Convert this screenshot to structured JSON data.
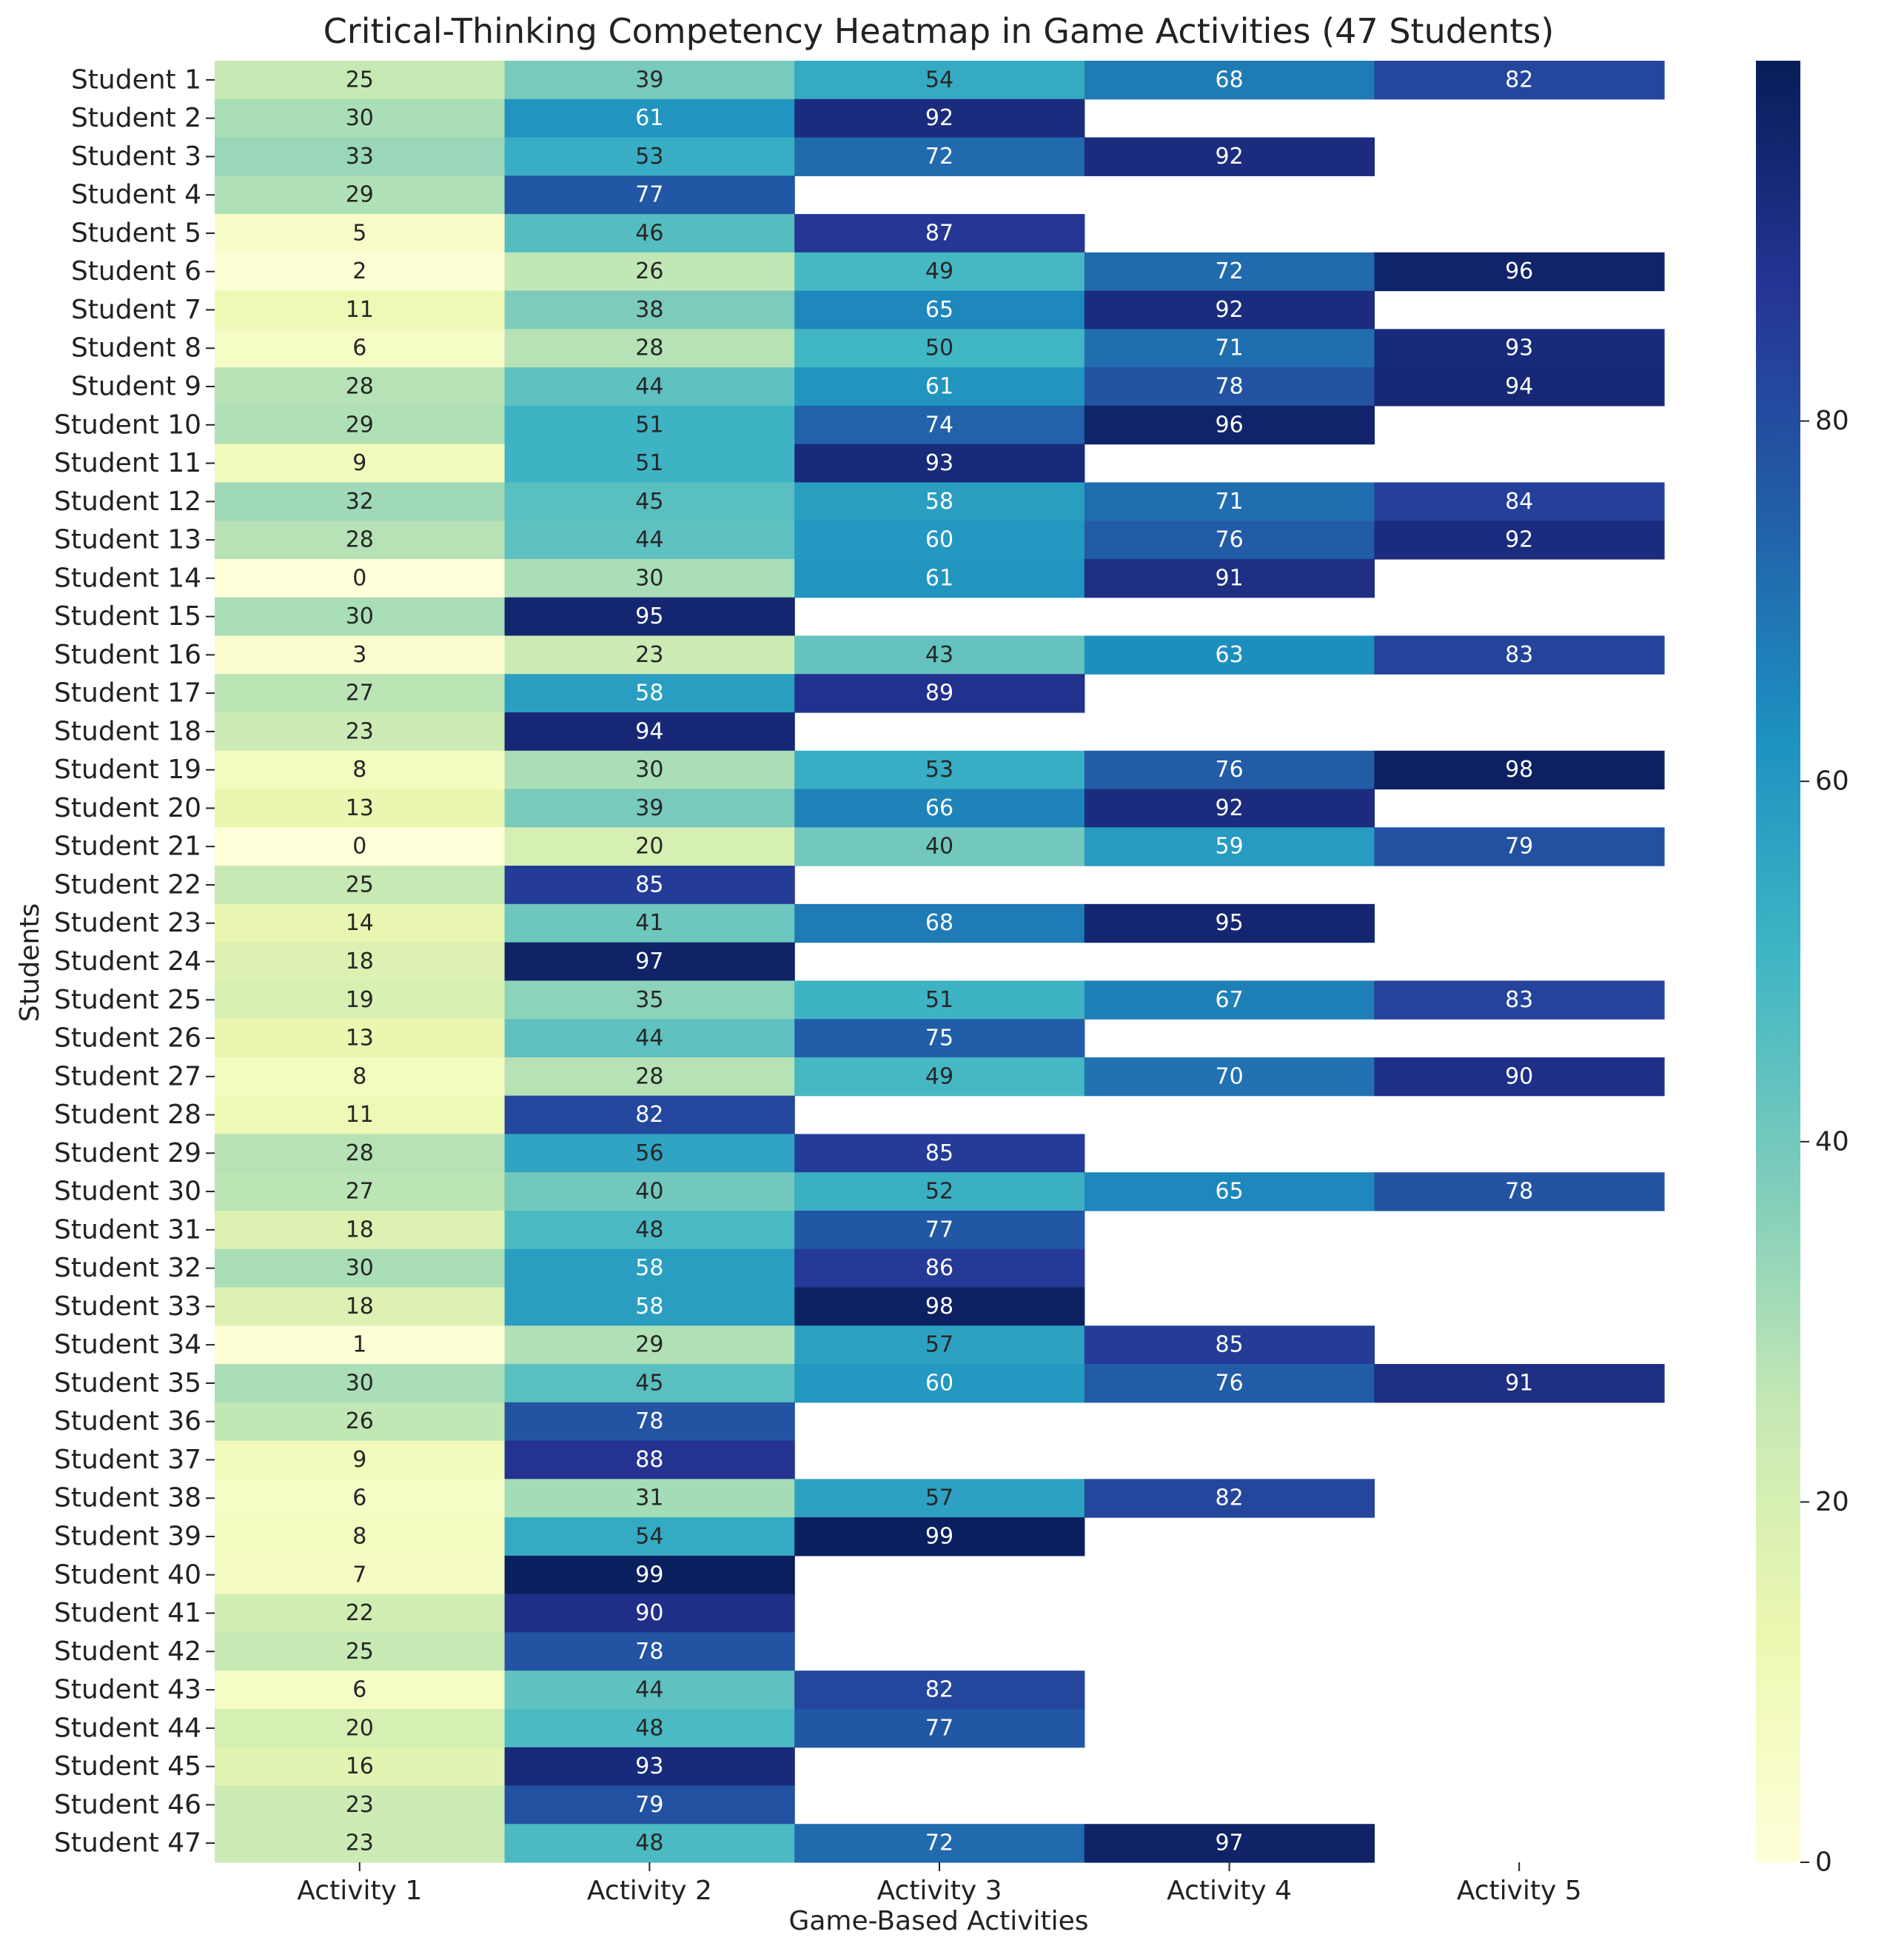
{
  "chart_data": {
    "type": "heatmap",
    "title": "Critical-Thinking Competency Heatmap in Game Activities (47 Students)",
    "xlabel": "Game-Based Activities",
    "ylabel": "Students",
    "colormap": "YlGnBu",
    "vmin": 0,
    "vmax": 100,
    "colorbar_ticks": [
      0,
      20,
      40,
      60,
      80
    ],
    "columns": [
      "Activity 1",
      "Activity 2",
      "Activity 3",
      "Activity 4",
      "Activity 5"
    ],
    "rows": [
      {
        "label": "Student 1",
        "values": [
          25,
          39,
          54,
          68,
          82
        ]
      },
      {
        "label": "Student 2",
        "values": [
          30,
          61,
          92,
          null,
          null
        ]
      },
      {
        "label": "Student 3",
        "values": [
          33,
          53,
          72,
          92,
          null
        ]
      },
      {
        "label": "Student 4",
        "values": [
          29,
          77,
          null,
          null,
          null
        ]
      },
      {
        "label": "Student 5",
        "values": [
          5,
          46,
          87,
          null,
          null
        ]
      },
      {
        "label": "Student 6",
        "values": [
          2,
          26,
          49,
          72,
          96
        ]
      },
      {
        "label": "Student 7",
        "values": [
          11,
          38,
          65,
          92,
          null
        ]
      },
      {
        "label": "Student 8",
        "values": [
          6,
          28,
          50,
          71,
          93
        ]
      },
      {
        "label": "Student 9",
        "values": [
          28,
          44,
          61,
          78,
          94
        ]
      },
      {
        "label": "Student 10",
        "values": [
          29,
          51,
          74,
          96,
          null
        ]
      },
      {
        "label": "Student 11",
        "values": [
          9,
          51,
          93,
          null,
          null
        ]
      },
      {
        "label": "Student 12",
        "values": [
          32,
          45,
          58,
          71,
          84
        ]
      },
      {
        "label": "Student 13",
        "values": [
          28,
          44,
          60,
          76,
          92
        ]
      },
      {
        "label": "Student 14",
        "values": [
          0,
          30,
          61,
          91,
          null
        ]
      },
      {
        "label": "Student 15",
        "values": [
          30,
          95,
          null,
          null,
          null
        ]
      },
      {
        "label": "Student 16",
        "values": [
          3,
          23,
          43,
          63,
          83
        ]
      },
      {
        "label": "Student 17",
        "values": [
          27,
          58,
          89,
          null,
          null
        ]
      },
      {
        "label": "Student 18",
        "values": [
          23,
          94,
          null,
          null,
          null
        ]
      },
      {
        "label": "Student 19",
        "values": [
          8,
          30,
          53,
          76,
          98
        ]
      },
      {
        "label": "Student 20",
        "values": [
          13,
          39,
          66,
          92,
          null
        ]
      },
      {
        "label": "Student 21",
        "values": [
          0,
          20,
          40,
          59,
          79
        ]
      },
      {
        "label": "Student 22",
        "values": [
          25,
          85,
          null,
          null,
          null
        ]
      },
      {
        "label": "Student 23",
        "values": [
          14,
          41,
          68,
          95,
          null
        ]
      },
      {
        "label": "Student 24",
        "values": [
          18,
          97,
          null,
          null,
          null
        ]
      },
      {
        "label": "Student 25",
        "values": [
          19,
          35,
          51,
          67,
          83
        ]
      },
      {
        "label": "Student 26",
        "values": [
          13,
          44,
          75,
          null,
          null
        ]
      },
      {
        "label": "Student 27",
        "values": [
          8,
          28,
          49,
          70,
          90
        ]
      },
      {
        "label": "Student 28",
        "values": [
          11,
          82,
          null,
          null,
          null
        ]
      },
      {
        "label": "Student 29",
        "values": [
          28,
          56,
          85,
          null,
          null
        ]
      },
      {
        "label": "Student 30",
        "values": [
          27,
          40,
          52,
          65,
          78
        ]
      },
      {
        "label": "Student 31",
        "values": [
          18,
          48,
          77,
          null,
          null
        ]
      },
      {
        "label": "Student 32",
        "values": [
          30,
          58,
          86,
          null,
          null
        ]
      },
      {
        "label": "Student 33",
        "values": [
          18,
          58,
          98,
          null,
          null
        ]
      },
      {
        "label": "Student 34",
        "values": [
          1,
          29,
          57,
          85,
          null
        ]
      },
      {
        "label": "Student 35",
        "values": [
          30,
          45,
          60,
          76,
          91
        ]
      },
      {
        "label": "Student 36",
        "values": [
          26,
          78,
          null,
          null,
          null
        ]
      },
      {
        "label": "Student 37",
        "values": [
          9,
          88,
          null,
          null,
          null
        ]
      },
      {
        "label": "Student 38",
        "values": [
          6,
          31,
          57,
          82,
          null
        ]
      },
      {
        "label": "Student 39",
        "values": [
          8,
          54,
          99,
          null,
          null
        ]
      },
      {
        "label": "Student 40",
        "values": [
          7,
          99,
          null,
          null,
          null
        ]
      },
      {
        "label": "Student 41",
        "values": [
          22,
          90,
          null,
          null,
          null
        ]
      },
      {
        "label": "Student 42",
        "values": [
          25,
          78,
          null,
          null,
          null
        ]
      },
      {
        "label": "Student 43",
        "values": [
          6,
          44,
          82,
          null,
          null
        ]
      },
      {
        "label": "Student 44",
        "values": [
          20,
          48,
          77,
          null,
          null
        ]
      },
      {
        "label": "Student 45",
        "values": [
          16,
          93,
          null,
          null,
          null
        ]
      },
      {
        "label": "Student 46",
        "values": [
          23,
          79,
          null,
          null,
          null
        ]
      },
      {
        "label": "Student 47",
        "values": [
          23,
          48,
          72,
          97,
          null
        ]
      }
    ]
  }
}
